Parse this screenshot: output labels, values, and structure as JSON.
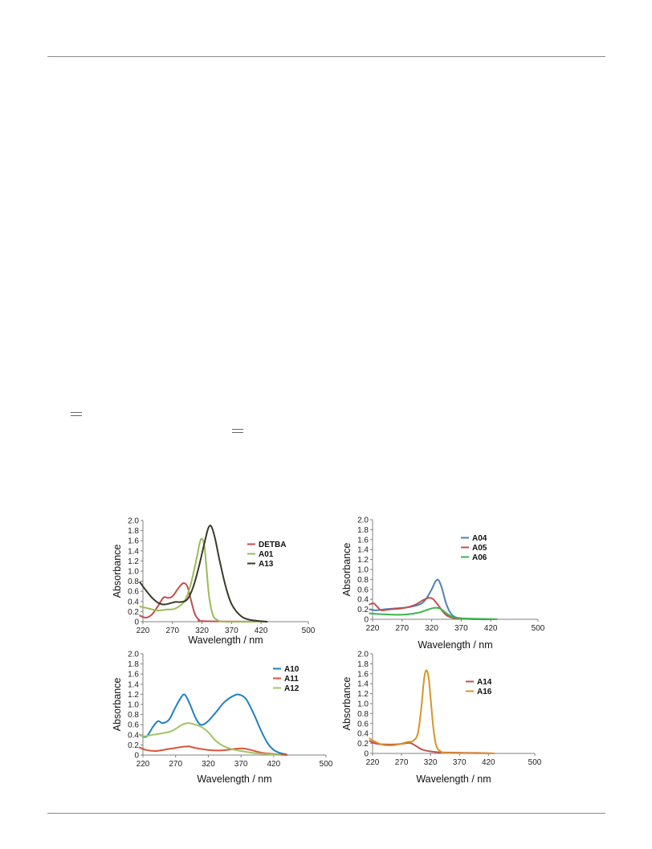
{
  "chart_data": [
    {
      "type": "line",
      "xlabel": "Wavelength / nm",
      "ylabel": "Absorbance",
      "xticks": [
        220,
        270,
        320,
        370,
        420,
        500
      ],
      "yticks": [
        "0",
        "0.2",
        "0.4",
        "0.6",
        "0.8",
        "1.0",
        "1.2",
        "1.4",
        "1.6",
        "1.8",
        "2.0"
      ],
      "xlim": [
        220,
        500
      ],
      "ylim": [
        0,
        2.0
      ],
      "legend_position": "right",
      "series": [
        {
          "name": "DETBA",
          "color": "#c0504d",
          "points": [
            [
              215,
              0.12
            ],
            [
              225,
              0.08
            ],
            [
              235,
              0.14
            ],
            [
              245,
              0.3
            ],
            [
              255,
              0.48
            ],
            [
              262,
              0.47
            ],
            [
              270,
              0.5
            ],
            [
              280,
              0.66
            ],
            [
              288,
              0.76
            ],
            [
              295,
              0.7
            ],
            [
              302,
              0.4
            ],
            [
              308,
              0.15
            ],
            [
              315,
              0.04
            ],
            [
              325,
              0.01
            ],
            [
              430,
              0.0
            ]
          ]
        },
        {
          "name": "A01",
          "color": "#9bbb59",
          "points": [
            [
              215,
              0.3
            ],
            [
              230,
              0.26
            ],
            [
              245,
              0.22
            ],
            [
              260,
              0.24
            ],
            [
              275,
              0.26
            ],
            [
              290,
              0.4
            ],
            [
              300,
              0.7
            ],
            [
              310,
              1.2
            ],
            [
              316,
              1.55
            ],
            [
              320,
              1.64
            ],
            [
              324,
              1.5
            ],
            [
              328,
              1.0
            ],
            [
              332,
              0.5
            ],
            [
              338,
              0.15
            ],
            [
              345,
              0.04
            ],
            [
              360,
              0.0
            ],
            [
              430,
              0.0
            ]
          ]
        },
        {
          "name": "A13",
          "color": "#3a3a2a",
          "points": [
            [
              215,
              0.78
            ],
            [
              225,
              0.62
            ],
            [
              235,
              0.48
            ],
            [
              245,
              0.38
            ],
            [
              255,
              0.34
            ],
            [
              265,
              0.36
            ],
            [
              275,
              0.39
            ],
            [
              285,
              0.39
            ],
            [
              295,
              0.44
            ],
            [
              305,
              0.68
            ],
            [
              315,
              1.1
            ],
            [
              325,
              1.6
            ],
            [
              331,
              1.86
            ],
            [
              336,
              1.88
            ],
            [
              342,
              1.65
            ],
            [
              350,
              1.2
            ],
            [
              360,
              0.7
            ],
            [
              370,
              0.35
            ],
            [
              385,
              0.12
            ],
            [
              400,
              0.04
            ],
            [
              420,
              0.01
            ],
            [
              430,
              0.0
            ]
          ]
        }
      ]
    },
    {
      "type": "line",
      "xlabel": "Wavelength / nm",
      "ylabel": "Absorbance",
      "xticks": [
        220,
        270,
        320,
        370,
        420,
        500
      ],
      "yticks": [
        "0",
        "0.2",
        "0.4",
        "0.6",
        "0.8",
        "1.0",
        "1.2",
        "1.4",
        "1.6",
        "1.8",
        "2.0"
      ],
      "xlim": [
        220,
        500
      ],
      "ylim": [
        0,
        2.0
      ],
      "legend_position": "top-right",
      "series": [
        {
          "name": "A04",
          "color": "#4f81bd",
          "points": [
            [
              215,
              0.2
            ],
            [
              225,
              0.18
            ],
            [
              240,
              0.2
            ],
            [
              260,
              0.22
            ],
            [
              280,
              0.24
            ],
            [
              300,
              0.3
            ],
            [
              310,
              0.4
            ],
            [
              320,
              0.6
            ],
            [
              327,
              0.77
            ],
            [
              332,
              0.78
            ],
            [
              338,
              0.6
            ],
            [
              345,
              0.3
            ],
            [
              355,
              0.08
            ],
            [
              370,
              0.02
            ],
            [
              400,
              0.0
            ],
            [
              430,
              0.0
            ]
          ]
        },
        {
          "name": "A05",
          "color": "#c0504d",
          "points": [
            [
              215,
              0.3
            ],
            [
              222,
              0.32
            ],
            [
              228,
              0.25
            ],
            [
              235,
              0.18
            ],
            [
              250,
              0.2
            ],
            [
              270,
              0.22
            ],
            [
              290,
              0.28
            ],
            [
              305,
              0.38
            ],
            [
              315,
              0.43
            ],
            [
              322,
              0.41
            ],
            [
              330,
              0.3
            ],
            [
              340,
              0.14
            ],
            [
              350,
              0.05
            ],
            [
              370,
              0.01
            ],
            [
              430,
              0.0
            ]
          ]
        },
        {
          "name": "A06",
          "color": "#3cb44b",
          "points": [
            [
              215,
              0.12
            ],
            [
              225,
              0.11
            ],
            [
              240,
              0.1
            ],
            [
              260,
              0.09
            ],
            [
              280,
              0.1
            ],
            [
              300,
              0.14
            ],
            [
              315,
              0.2
            ],
            [
              325,
              0.23
            ],
            [
              335,
              0.21
            ],
            [
              345,
              0.12
            ],
            [
              355,
              0.05
            ],
            [
              370,
              0.02
            ],
            [
              400,
              0.01
            ],
            [
              430,
              0.0
            ]
          ]
        }
      ]
    },
    {
      "type": "line",
      "xlabel": "Wavelength / nm",
      "ylabel": "Absorbance",
      "xticks": [
        220,
        270,
        320,
        370,
        420,
        500
      ],
      "yticks": [
        "0",
        "0.2",
        "0.4",
        "0.6",
        "0.8",
        "1.0",
        "1.2",
        "1.4",
        "1.6",
        "1.8",
        "2.0"
      ],
      "xlim": [
        220,
        500
      ],
      "ylim": [
        0,
        2.0
      ],
      "legend_position": "top-right",
      "series": [
        {
          "name": "A10",
          "color": "#1f7fc4",
          "points": [
            [
              215,
              0.4
            ],
            [
              225,
              0.36
            ],
            [
              235,
              0.55
            ],
            [
              243,
              0.67
            ],
            [
              250,
              0.63
            ],
            [
              260,
              0.7
            ],
            [
              270,
              0.95
            ],
            [
              280,
              1.17
            ],
            [
              285,
              1.18
            ],
            [
              292,
              1.0
            ],
            [
              300,
              0.75
            ],
            [
              308,
              0.6
            ],
            [
              318,
              0.65
            ],
            [
              330,
              0.82
            ],
            [
              345,
              1.05
            ],
            [
              360,
              1.18
            ],
            [
              368,
              1.19
            ],
            [
              378,
              1.1
            ],
            [
              390,
              0.8
            ],
            [
              400,
              0.5
            ],
            [
              410,
              0.25
            ],
            [
              420,
              0.1
            ],
            [
              430,
              0.04
            ],
            [
              440,
              0.01
            ]
          ]
        },
        {
          "name": "A11",
          "color": "#d9543c",
          "points": [
            [
              215,
              0.15
            ],
            [
              225,
              0.1
            ],
            [
              240,
              0.08
            ],
            [
              260,
              0.12
            ],
            [
              280,
              0.16
            ],
            [
              290,
              0.17
            ],
            [
              300,
              0.14
            ],
            [
              320,
              0.1
            ],
            [
              340,
              0.09
            ],
            [
              360,
              0.12
            ],
            [
              372,
              0.13
            ],
            [
              385,
              0.1
            ],
            [
              400,
              0.05
            ],
            [
              420,
              0.02
            ],
            [
              440,
              0.0
            ]
          ]
        },
        {
          "name": "A12",
          "color": "#a3c464",
          "points": [
            [
              215,
              0.4
            ],
            [
              222,
              0.37
            ],
            [
              235,
              0.4
            ],
            [
              250,
              0.43
            ],
            [
              265,
              0.48
            ],
            [
              280,
              0.6
            ],
            [
              290,
              0.63
            ],
            [
              300,
              0.6
            ],
            [
              310,
              0.55
            ],
            [
              320,
              0.45
            ],
            [
              330,
              0.3
            ],
            [
              340,
              0.2
            ],
            [
              355,
              0.12
            ],
            [
              370,
              0.08
            ],
            [
              390,
              0.04
            ],
            [
              410,
              0.02
            ],
            [
              430,
              0.0
            ]
          ]
        }
      ]
    },
    {
      "type": "line",
      "xlabel": "Wavelength / nm",
      "ylabel": "Absorbance",
      "xticks": [
        220,
        270,
        320,
        370,
        420,
        500
      ],
      "yticks": [
        "0",
        "0.2",
        "0.4",
        "0.6",
        "0.8",
        "1.0",
        "1.2",
        "1.4",
        "1.6",
        "1.8",
        "2.0"
      ],
      "xlim": [
        220,
        500
      ],
      "ylim": [
        0,
        2.0
      ],
      "legend_position": "right",
      "series": [
        {
          "name": "A14",
          "color": "#c0504d",
          "points": [
            [
              215,
              0.25
            ],
            [
              225,
              0.2
            ],
            [
              240,
              0.18
            ],
            [
              260,
              0.18
            ],
            [
              275,
              0.2
            ],
            [
              285,
              0.21
            ],
            [
              295,
              0.15
            ],
            [
              305,
              0.08
            ],
            [
              320,
              0.04
            ],
            [
              340,
              0.02
            ],
            [
              400,
              0.01
            ],
            [
              430,
              0.0
            ]
          ]
        },
        {
          "name": "A16",
          "color": "#d99427",
          "points": [
            [
              215,
              0.3
            ],
            [
              222,
              0.25
            ],
            [
              235,
              0.18
            ],
            [
              250,
              0.16
            ],
            [
              265,
              0.18
            ],
            [
              280,
              0.23
            ],
            [
              290,
              0.25
            ],
            [
              298,
              0.4
            ],
            [
              304,
              0.9
            ],
            [
              309,
              1.5
            ],
            [
              313,
              1.67
            ],
            [
              317,
              1.5
            ],
            [
              321,
              1.0
            ],
            [
              325,
              0.5
            ],
            [
              330,
              0.15
            ],
            [
              338,
              0.04
            ],
            [
              350,
              0.01
            ],
            [
              430,
              0.0
            ]
          ]
        }
      ]
    }
  ]
}
